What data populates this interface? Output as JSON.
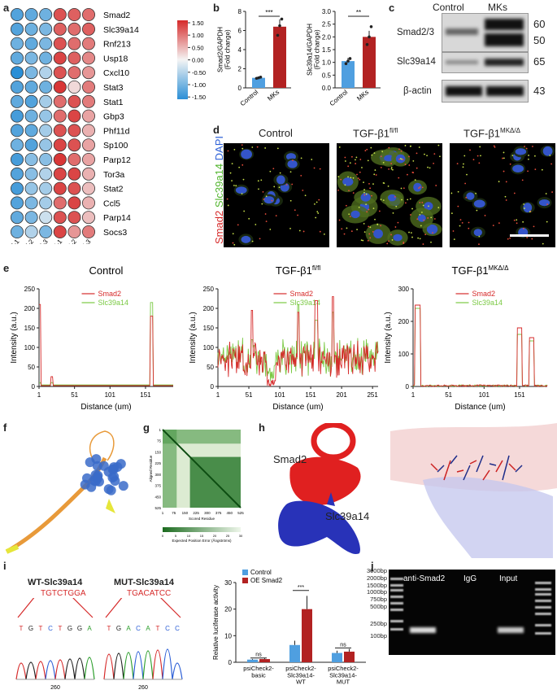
{
  "panel_labels": [
    "a",
    "b",
    "c",
    "d",
    "e",
    "f",
    "g",
    "h",
    "i",
    "j"
  ],
  "a": {
    "genes": [
      "Smad2",
      "Slc39a14",
      "Rnf213",
      "Usp18",
      "Cxcl10",
      "Stat3",
      "Stat1",
      "Gbp3",
      "Phf11d",
      "Sp100",
      "Parp12",
      "Tor3a",
      "Stat2",
      "Ccl5",
      "Parp14",
      "Socs3"
    ],
    "samples": [
      "control-1",
      "control-2",
      "control-3",
      "MK-1",
      "MK-2",
      "MK-3"
    ],
    "colorbar_ticks": [
      "1.50",
      "1.00",
      "0.50",
      "0.00",
      "-0.50",
      "-1.00",
      "-1.50"
    ],
    "colors": {
      "high": "#d62a2a",
      "mid": "#f4f4f4",
      "low": "#2b8fd6"
    }
  },
  "chart_data": [
    {
      "type": "heatmap",
      "rows": [
        "Smad2",
        "Slc39a14",
        "Rnf213",
        "Usp18",
        "Cxcl10",
        "Stat3",
        "Stat1",
        "Gbp3",
        "Phf11d",
        "Sp100",
        "Parp12",
        "Tor3a",
        "Stat2",
        "Ccl5",
        "Parp14",
        "Socs3"
      ],
      "columns": [
        "control-1",
        "control-2",
        "control-3",
        "MK-1",
        "MK-2",
        "MK-3"
      ],
      "values": [
        [
          -1.2,
          -1.1,
          -1.0,
          1.2,
          1.1,
          1.0
        ],
        [
          -1.2,
          -1.0,
          -0.9,
          1.1,
          1.0,
          1.1
        ],
        [
          -1.0,
          -1.1,
          -0.9,
          1.2,
          1.0,
          0.9
        ],
        [
          -1.1,
          -0.9,
          -1.0,
          1.3,
          1.1,
          0.8
        ],
        [
          -1.5,
          -0.9,
          -0.5,
          1.2,
          1.0,
          0.7
        ],
        [
          -1.2,
          -1.1,
          -1.0,
          1.4,
          0.2,
          0.9
        ],
        [
          -1.1,
          -1.2,
          -0.6,
          1.0,
          1.2,
          0.9
        ],
        [
          -1.3,
          -1.0,
          -0.7,
          1.0,
          1.3,
          0.6
        ],
        [
          -1.2,
          -1.1,
          -0.6,
          1.2,
          1.2,
          0.5
        ],
        [
          -1.0,
          -1.2,
          -0.7,
          1.3,
          1.2,
          0.6
        ],
        [
          -1.3,
          -0.8,
          -0.8,
          1.4,
          1.0,
          0.6
        ],
        [
          -1.2,
          -0.8,
          -0.5,
          1.3,
          1.3,
          0.5
        ],
        [
          -1.3,
          -0.7,
          -0.6,
          1.3,
          1.2,
          0.4
        ],
        [
          -1.2,
          -0.9,
          -0.6,
          1.0,
          1.3,
          0.5
        ],
        [
          -1.1,
          -0.9,
          -0.3,
          1.2,
          1.2,
          0.4
        ],
        [
          -1.0,
          -0.5,
          -0.9,
          1.3,
          0.7,
          0.9
        ]
      ]
    },
    {
      "type": "bar",
      "categories": [
        "Control",
        "MKs"
      ],
      "values": [
        1.05,
        6.4
      ],
      "ylabel": "Smad2/GAPDH (Fold change)",
      "ylim": [
        0,
        8
      ],
      "yticks": [
        "0",
        "2",
        "4",
        "6",
        "8"
      ],
      "significance": "***",
      "points": [
        [
          1.0,
          1.05,
          1.12
        ],
        [
          5.5,
          6.5,
          7.2
        ]
      ]
    },
    {
      "type": "bar",
      "categories": [
        "Control",
        "MKs"
      ],
      "values": [
        1.05,
        2.0
      ],
      "ylabel": "Slc39a14/GAPDH (Fold change)",
      "ylim": [
        0,
        3
      ],
      "yticks": [
        "0.0",
        "0.5",
        "1.0",
        "1.5",
        "2.0",
        "2.5",
        "3.0"
      ],
      "significance": "**",
      "points": [
        [
          0.95,
          1.05,
          1.15
        ],
        [
          1.7,
          2.0,
          2.4
        ]
      ]
    },
    {
      "type": "line",
      "title": "Control",
      "series": [
        {
          "name": "Smad2"
        },
        {
          "name": "Slc39a14"
        }
      ],
      "xlabel": "Distance (um)",
      "ylabel": "Intensity (a.u.)",
      "ylim": [
        0,
        250
      ],
      "xlim": [
        1,
        190
      ],
      "xticks": [
        "1",
        "51",
        "101",
        "151"
      ],
      "yticks": [
        "0",
        "50",
        "100",
        "150",
        "200",
        "250"
      ]
    },
    {
      "type": "line",
      "title": "TGF-β1",
      "title_sup": "fl/fl",
      "series": [
        {
          "name": "Smad2"
        },
        {
          "name": "Slc39a14"
        }
      ],
      "xlabel": "Distance (um)",
      "ylabel": "Intensity (a.u.)",
      "ylim": [
        0,
        250
      ],
      "xlim": [
        1,
        260
      ],
      "xticks": [
        "1",
        "51",
        "101",
        "151",
        "201",
        "251"
      ],
      "yticks": [
        "0",
        "50",
        "100",
        "150",
        "200",
        "250"
      ]
    },
    {
      "type": "line",
      "title": "TGF-β1",
      "title_sup": "MKΔ/Δ",
      "series": [
        {
          "name": "Smad2"
        },
        {
          "name": "Slc39a14"
        }
      ],
      "xlabel": "Distance (um)",
      "ylabel": "Intensity (a.u.)",
      "ylim": [
        0,
        300
      ],
      "xlim": [
        1,
        190
      ],
      "xticks": [
        "1",
        "51",
        "101",
        "151"
      ],
      "yticks": [
        "0",
        "100",
        "200",
        "300"
      ]
    },
    {
      "type": "bar",
      "categories": [
        "psiCheck2-basic",
        "psiCheck2-Slc39a14-WT",
        "psiCheck2-Slc39a14-MUT"
      ],
      "ylabel": "Relative luciferase activity",
      "ylim": [
        0,
        30
      ],
      "yticks": [
        "0",
        "10",
        "20",
        "30"
      ],
      "series": [
        {
          "name": "Control",
          "values": [
            1.0,
            6.5,
            3.5
          ]
        },
        {
          "name": "OE Smad2",
          "values": [
            1.2,
            20.0,
            4.0
          ]
        }
      ],
      "significance": [
        "ns",
        "***",
        "ns"
      ]
    }
  ],
  "c": {
    "headers": [
      "Control",
      "MKs"
    ],
    "rows": [
      {
        "label": "Smad2/3",
        "kda": [
          "60",
          "50"
        ]
      },
      {
        "label": "Slc39a14",
        "kda": [
          "65"
        ]
      },
      {
        "label": "β-actin",
        "kda": [
          "43"
        ]
      }
    ]
  },
  "d": {
    "titles": [
      "Control",
      "TGF-β1",
      "TGF-β1"
    ],
    "sups": [
      "",
      "fl/fl",
      "MKΔ/Δ"
    ],
    "stain": {
      "smad2": "Smad2",
      "slc": "Slc39a14",
      "dapi": "DAPI"
    }
  },
  "h": {
    "smad2": "Smad2",
    "slc": "Slc39a14"
  },
  "g": {
    "xlabel": "Scored Residue",
    "ylabel": "Aligned Residue",
    "ticks": [
      "1",
      "75",
      "150",
      "225",
      "300",
      "375",
      "450",
      "525"
    ],
    "cbar": "Expected Position Error (Ångströms)",
    "cbar_ticks": [
      "0",
      "5",
      "10",
      "15",
      "20",
      "25",
      "30"
    ]
  },
  "i": {
    "wt_title": "WT-Slc39a14",
    "wt_seq": "TGTCTGGA",
    "mut_title": "MUT-Slc39a14",
    "mut_seq": "TGACATCC",
    "pos": "260"
  },
  "j": {
    "lanes": [
      "anti-Smad2",
      "IgG",
      "Input"
    ],
    "ladder": [
      "3000bp",
      "2000bp",
      "1500bp",
      "1000bp",
      "750bp",
      "500bp",
      "250bp",
      "100bp"
    ]
  },
  "series_colors": {
    "smad2": "#d62a2a",
    "slc": "#7ac943",
    "control": "#4f9fe0",
    "oe": "#b22222"
  }
}
